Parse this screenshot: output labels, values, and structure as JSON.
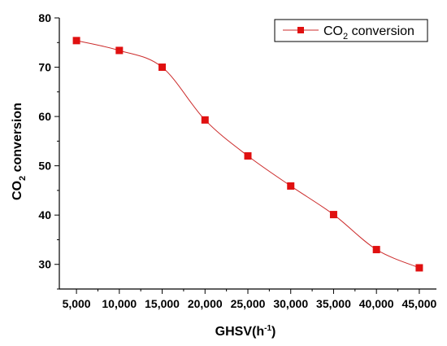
{
  "chart_data": {
    "type": "line",
    "x": [
      5000,
      10000,
      15000,
      20000,
      25000,
      30000,
      35000,
      40000,
      45000
    ],
    "x_tick_labels": [
      "5,000",
      "10,000",
      "15,000",
      "20,000",
      "25,000",
      "30,000",
      "35,000",
      "40,000",
      "45,000"
    ],
    "y_ticks": [
      30,
      40,
      50,
      60,
      70,
      80
    ],
    "xlim": [
      3000,
      47000
    ],
    "ylim": [
      25,
      80
    ],
    "series": [
      {
        "name": "CO2 conversion",
        "values": [
          75.4,
          73.4,
          70.0,
          59.3,
          52.0,
          45.9,
          40.1,
          33.0,
          29.3
        ]
      }
    ],
    "xlabel": {
      "main": "GHSV(h",
      "sup": "-1",
      "close": ")"
    },
    "ylabel": {
      "pre": "CO",
      "sub": "2",
      "post": " conversion"
    },
    "legend": {
      "pre": "CO",
      "sub": "2",
      "post": " conversion",
      "position": "top-right"
    },
    "grid": false,
    "colors": {
      "line": "#cc2b2b",
      "marker": "#e01010",
      "text": "#000000"
    }
  }
}
